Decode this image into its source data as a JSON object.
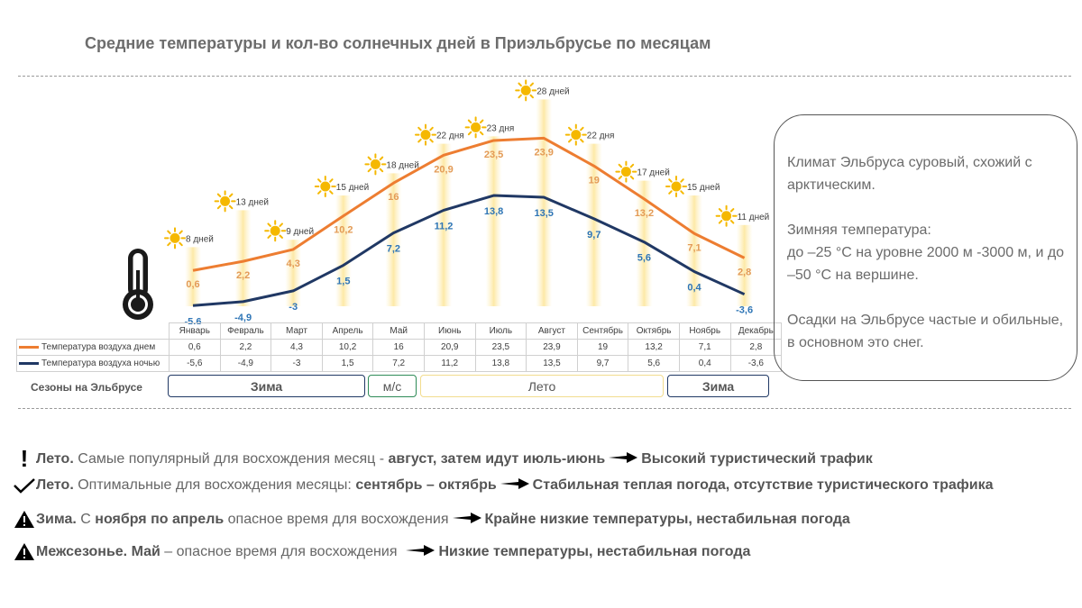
{
  "title": "Средние температуры и кол-во солнечных дней в Приэльбрусье по месяцам",
  "chart_data": {
    "type": "line",
    "categories": [
      "Январь",
      "Февраль",
      "Март",
      "Апрель",
      "Май",
      "Июнь",
      "Июль",
      "Август",
      "Сентябрь",
      "Октябрь",
      "Ноябрь",
      "Декабрь"
    ],
    "series": [
      {
        "name": "Температура воздуха днем",
        "color": "#ed7d31",
        "values": [
          0.6,
          2.2,
          4.3,
          10.2,
          16,
          20.9,
          23.5,
          23.9,
          19,
          13.2,
          7.1,
          2.8
        ],
        "labels": [
          "0,6",
          "2,2",
          "4,3",
          "10,2",
          "16",
          "20,9",
          "23,5",
          "23,9",
          "19",
          "13,2",
          "7,1",
          "2,8"
        ]
      },
      {
        "name": "Температура воздуха ночью",
        "color": "#203864",
        "values": [
          -5.6,
          -4.9,
          -3,
          1.5,
          7.2,
          11.2,
          13.8,
          13.5,
          9.7,
          5.6,
          0.4,
          -3.6
        ],
        "labels": [
          "-5,6",
          "-4,9",
          "-3",
          "1,5",
          "7,2",
          "11,2",
          "13,8",
          "13,5",
          "9,7",
          "5,6",
          "0,4",
          "-3,6"
        ]
      }
    ],
    "sunny_days": {
      "name": "Солнечные дни",
      "values": [
        8,
        13,
        9,
        15,
        18,
        22,
        23,
        28,
        22,
        17,
        15,
        11
      ],
      "labels": [
        "8 дней",
        "13 дней",
        "9 дней",
        "15 дней",
        "18 дней",
        "22 дня",
        "23 дня",
        "28 дней",
        "22 дня",
        "17 дней",
        "15 дней",
        "11 дней"
      ]
    },
    "day_label_color": "#e39a55",
    "night_label_color": "#2e75b6",
    "bar_color": "#fde9a6",
    "sun_color": "#f5b800",
    "thermometer_icon": "thermometer-icon",
    "sun_icon": "sun-icon"
  },
  "table": {
    "months": [
      "Январь",
      "Февраль",
      "Март",
      "Апрель",
      "Май",
      "Июнь",
      "Июль",
      "Август",
      "Сентябрь",
      "Октябрь",
      "Ноябрь",
      "Декабрь"
    ],
    "rows": [
      {
        "label": "Температура воздуха днем",
        "color": "#ed7d31",
        "cells": [
          "0,6",
          "2,2",
          "4,3",
          "10,2",
          "16",
          "20,9",
          "23,5",
          "23,9",
          "19",
          "13,2",
          "7,1",
          "2,8"
        ]
      },
      {
        "label": "Температура воздуха ночью",
        "color": "#203864",
        "cells": [
          "-5,6",
          "-4,9",
          "-3",
          "1,5",
          "7,2",
          "11,2",
          "13,8",
          "13,5",
          "9,7",
          "5,6",
          "0,4",
          "-3,6"
        ]
      }
    ]
  },
  "seasons": {
    "label": "Сезоны на Эльбрусе",
    "items": [
      {
        "name": "Зима",
        "color": "#203864"
      },
      {
        "name": "м/с",
        "color": "#2e8b57"
      },
      {
        "name": "Лето",
        "color": "#f2dc8e"
      },
      {
        "name": "Зима",
        "color": "#203864"
      }
    ]
  },
  "info": {
    "p1": "Климат Эльбруса суровый, схожий с арктическим.",
    "p2a": "Зимняя температура:",
    "p2b": "до –25 °С на уровне 2000 м -3000 м, и до –50 °С на вершине.",
    "p3": "Осадки на Эльбрусе частые и обильные, в основном это снег."
  },
  "notes": [
    {
      "icon": "exclamation-icon",
      "head": "Лето.",
      "text": " Самые популярный для восхождения месяц - ",
      "bold": "август, затем идут июль-июнь",
      "result": "Высокий туристический трафик"
    },
    {
      "icon": "checkmark-icon",
      "head": "Лето.",
      "text": " Оптимальные для восхождения месяцы: ",
      "bold": "сентябрь – октябрь",
      "result": "Стабильная теплая погода, отсутствие туристического трафика"
    },
    {
      "icon": "warning-icon",
      "head": "Зима.",
      "text": " С ",
      "bold": "ноября по апрель",
      "text2": " опасное время для восхождения",
      "result": "Крайне низкие температуры, нестабильная погода"
    },
    {
      "icon": "warning-icon",
      "head": "Межсезонье. Май",
      "text": " – опасное время для восхождения",
      "result": "Низкие температуры, нестабильная погода"
    }
  ]
}
